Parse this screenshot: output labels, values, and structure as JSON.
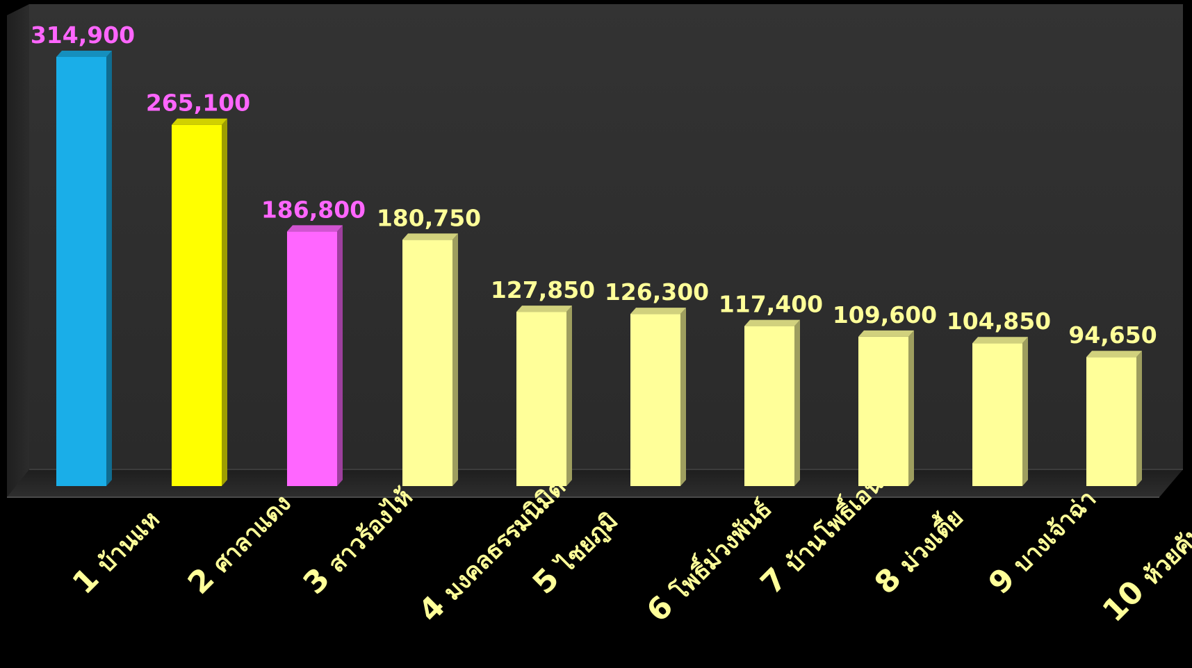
{
  "chart_data": {
    "type": "bar",
    "title": "",
    "xlabel": "",
    "ylabel": "",
    "ylim": [
      0,
      330000
    ],
    "grid": false,
    "legend": "none",
    "categories": [
      {
        "rank": "1",
        "name": "บ้านแห"
      },
      {
        "rank": "2",
        "name": "ศาลาแดง"
      },
      {
        "rank": "3",
        "name": "สาวร้องไห้"
      },
      {
        "rank": "4",
        "name": "มงคลธรรมนิมิต"
      },
      {
        "rank": "5",
        "name": "ไชยภูมิ"
      },
      {
        "rank": "6",
        "name": "โพธิ์ม่วงพันธ์"
      },
      {
        "rank": "7",
        "name": "บ้านโพธิ์เอน"
      },
      {
        "rank": "8",
        "name": "ม่วงเตี้ย"
      },
      {
        "rank": "9",
        "name": "บางเจ้าฉ่า"
      },
      {
        "rank": "10",
        "name": "ห้วยคันแหลน"
      }
    ],
    "values": [
      314900,
      265100,
      186800,
      180750,
      127850,
      126300,
      117400,
      109600,
      104850,
      94650
    ],
    "value_labels": [
      "314,900",
      "265,100",
      "186,800",
      "180,750",
      "127,850",
      "126,300",
      "117,400",
      "109,600",
      "104,850",
      "94,650"
    ],
    "bar_colors": [
      "#1aaee8",
      "#ffff00",
      "#ff66ff",
      "#ffff99",
      "#ffff99",
      "#ffff99",
      "#ffff99",
      "#ffff99",
      "#ffff99",
      "#ffff99"
    ],
    "label_colors": [
      "#ff66ff",
      "#ff66ff",
      "#ff66ff",
      "#ffff99",
      "#ffff99",
      "#ffff99",
      "#ffff99",
      "#ffff99",
      "#ffff99",
      "#ffff99"
    ],
    "category_label_color": "#ffff99",
    "wall_color": "#303030",
    "floor_color": "#232323",
    "background_color": "#000000"
  }
}
